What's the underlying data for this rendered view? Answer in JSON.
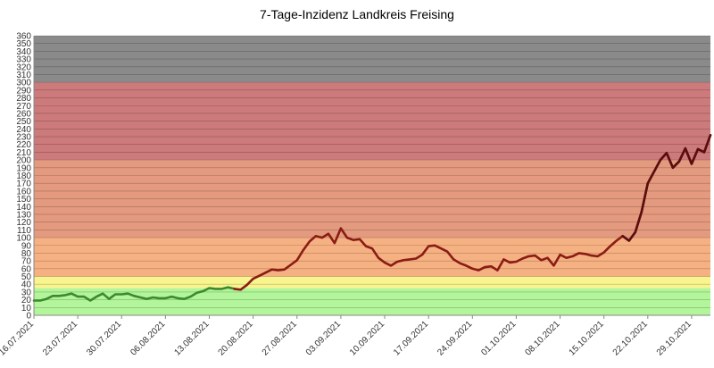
{
  "chart_data": {
    "type": "line",
    "title": "7-Tage-Inzidenz Landkreis Freising",
    "xlabel": "",
    "ylabel": "",
    "ylim": [
      0,
      360
    ],
    "ytick_step": 10,
    "grid": true,
    "legend": "none",
    "x_start": "16.07.2021",
    "x_end": "01.11.2021",
    "xtick_labels": [
      "16.07.2021",
      "23.07.2021",
      "30.07.2021",
      "06.08.2021",
      "13.08.2021",
      "20.08.2021",
      "27.08.2021",
      "03.09.2021",
      "10.09.2021",
      "17.09.2021",
      "24.09.2021",
      "01.10.2021",
      "08.10.2021",
      "15.10.2021",
      "22.10.2021",
      "29.10.2021"
    ],
    "bands": [
      {
        "from": 0,
        "to": 35,
        "color": "#b3f59a"
      },
      {
        "from": 35,
        "to": 50,
        "color": "#f8f58e"
      },
      {
        "from": 50,
        "to": 100,
        "color": "#f6b183"
      },
      {
        "from": 100,
        "to": 200,
        "color": "#e49a7e"
      },
      {
        "from": 200,
        "to": 300,
        "color": "#cc7a7b"
      },
      {
        "from": 300,
        "to": 360,
        "color": "#8a8a8a"
      }
    ],
    "segments": [
      {
        "color": "#3b8a2d",
        "from_index": 0,
        "to_index": 32
      },
      {
        "color": "#8a1c14",
        "from_index": 32,
        "to_index": 108
      },
      {
        "color": "#5a0e0e",
        "from_index": 94,
        "to_index": 108
      }
    ],
    "series": [
      {
        "x": [
          "16.07.2021",
          "17.07.2021",
          "18.07.2021",
          "19.07.2021",
          "20.07.2021",
          "21.07.2021",
          "22.07.2021",
          "23.07.2021",
          "24.07.2021",
          "25.07.2021",
          "26.07.2021",
          "27.07.2021",
          "28.07.2021",
          "29.07.2021",
          "30.07.2021",
          "31.07.2021",
          "01.08.2021",
          "02.08.2021",
          "03.08.2021",
          "04.08.2021",
          "05.08.2021",
          "06.08.2021",
          "07.08.2021",
          "08.08.2021",
          "09.08.2021",
          "10.08.2021",
          "11.08.2021",
          "12.08.2021",
          "13.08.2021",
          "14.08.2021",
          "15.08.2021",
          "16.08.2021",
          "17.08.2021",
          "18.08.2021",
          "19.08.2021",
          "20.08.2021",
          "21.08.2021",
          "22.08.2021",
          "23.08.2021",
          "24.08.2021",
          "25.08.2021",
          "26.08.2021",
          "27.08.2021",
          "28.08.2021",
          "29.08.2021",
          "30.08.2021",
          "31.08.2021",
          "01.09.2021",
          "02.09.2021",
          "03.09.2021",
          "04.09.2021",
          "05.09.2021",
          "06.09.2021",
          "07.09.2021",
          "08.09.2021",
          "09.09.2021",
          "10.09.2021",
          "11.09.2021",
          "12.09.2021",
          "13.09.2021",
          "14.09.2021",
          "15.09.2021",
          "16.09.2021",
          "17.09.2021",
          "18.09.2021",
          "19.09.2021",
          "20.09.2021",
          "21.09.2021",
          "22.09.2021",
          "23.09.2021",
          "24.09.2021",
          "25.09.2021",
          "26.09.2021",
          "27.09.2021",
          "28.09.2021",
          "29.09.2021",
          "30.09.2021",
          "01.10.2021",
          "02.10.2021",
          "03.10.2021",
          "04.10.2021",
          "05.10.2021",
          "06.10.2021",
          "07.10.2021",
          "08.10.2021",
          "09.10.2021",
          "10.10.2021",
          "11.10.2021",
          "12.10.2021",
          "13.10.2021",
          "14.10.2021",
          "15.10.2021",
          "16.10.2021",
          "17.10.2021",
          "18.10.2021",
          "19.10.2021",
          "20.10.2021",
          "21.10.2021",
          "22.10.2021",
          "23.10.2021",
          "24.10.2021",
          "25.10.2021",
          "26.10.2021",
          "27.10.2021",
          "28.10.2021",
          "29.10.2021",
          "30.10.2021",
          "31.10.2021",
          "01.11.2021"
        ],
        "values": [
          19,
          19,
          21,
          25,
          25,
          26,
          28,
          24,
          24,
          19,
          24,
          28,
          21,
          27,
          27,
          28,
          25,
          23,
          21,
          23,
          22,
          22,
          24,
          22,
          21,
          24,
          29,
          31,
          35,
          34,
          34,
          36,
          34,
          33,
          39,
          47,
          51,
          55,
          59,
          58,
          59,
          65,
          71,
          84,
          95,
          102,
          100,
          105,
          93,
          112,
          100,
          97,
          98,
          89,
          86,
          74,
          68,
          64,
          69,
          71,
          72,
          73,
          78,
          89,
          90,
          86,
          82,
          72,
          67,
          64,
          60,
          58,
          62,
          63,
          58,
          72,
          68,
          69,
          73,
          76,
          77,
          71,
          74,
          64,
          78,
          74,
          76,
          80,
          79,
          77,
          76,
          81,
          89,
          96,
          102,
          96,
          107,
          133,
          170,
          185,
          200,
          209,
          190,
          198,
          215,
          195,
          214,
          210,
          232
        ]
      }
    ]
  }
}
